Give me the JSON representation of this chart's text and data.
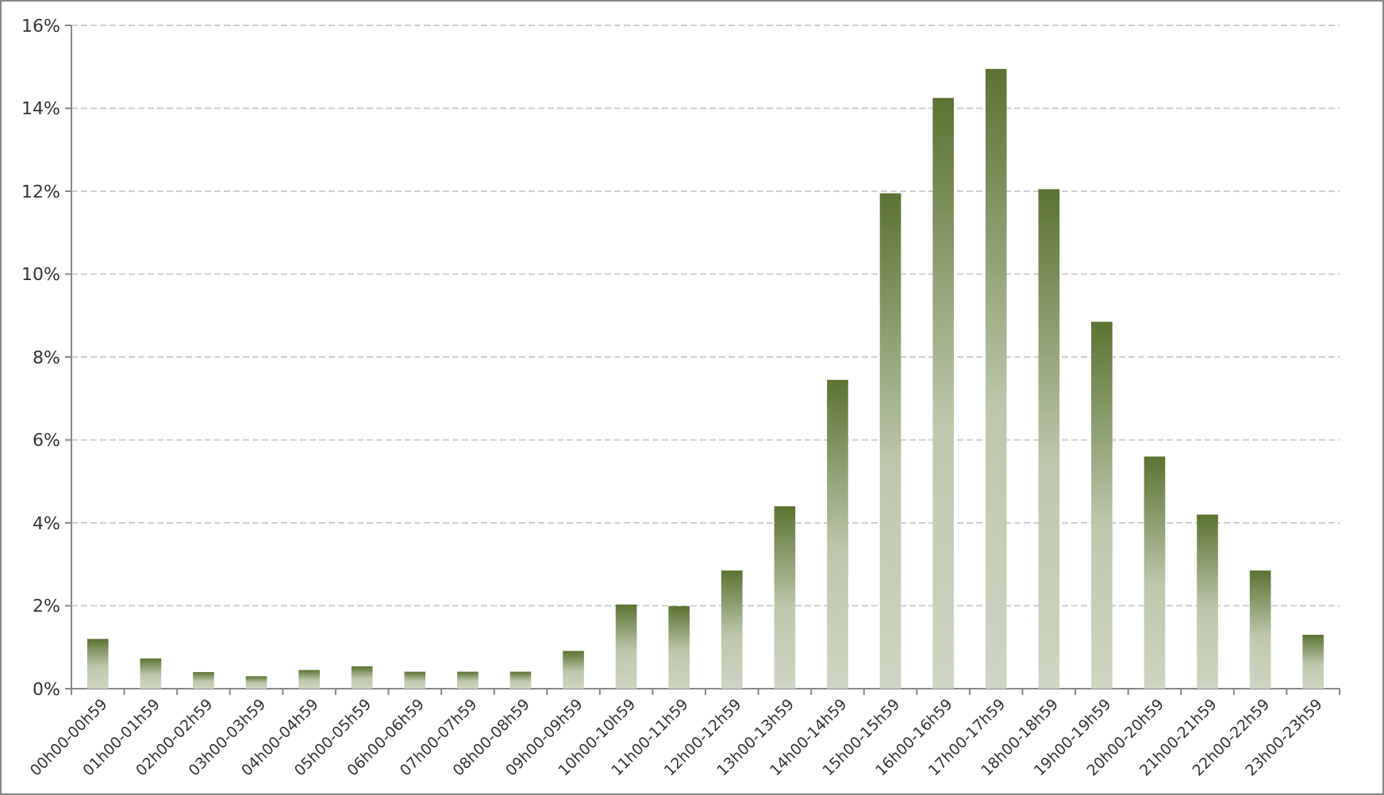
{
  "chart_data": {
    "type": "bar",
    "categories": [
      "00h00-00h59",
      "01h00-01h59",
      "02h00-02h59",
      "03h00-03h59",
      "04h00-04h59",
      "05h00-05h59",
      "06h00-06h59",
      "07h00-07h59",
      "08h00-08h59",
      "09h00-09h59",
      "10h00-10h59",
      "11h00-11h59",
      "12h00-12h59",
      "13h00-13h59",
      "14h00-14h59",
      "15h00-15h59",
      "16h00-16h59",
      "17h00-17h59",
      "18h00-18h59",
      "19h00-19h59",
      "20h00-20h59",
      "21h00-21h59",
      "22h00-22h59",
      "23h00-23h59"
    ],
    "values": [
      1.2,
      0.73,
      0.4,
      0.3,
      0.45,
      0.54,
      0.41,
      0.41,
      0.41,
      0.91,
      2.03,
      1.99,
      2.85,
      4.4,
      7.45,
      11.95,
      14.25,
      14.95,
      12.05,
      8.85,
      5.6,
      4.2,
      2.85,
      1.3
    ],
    "color": "#5b7332",
    "ylim": [
      0,
      16
    ],
    "yticks": [
      {
        "value": 0,
        "label": "0%"
      },
      {
        "value": 2,
        "label": "2%"
      },
      {
        "value": 4,
        "label": "4%"
      },
      {
        "value": 6,
        "label": "6%"
      },
      {
        "value": 8,
        "label": "8%"
      },
      {
        "value": 10,
        "label": "10%"
      },
      {
        "value": 12,
        "label": "12%"
      },
      {
        "value": 14,
        "label": "14%"
      },
      {
        "value": 16,
        "label": "16%"
      }
    ],
    "grid": "y"
  }
}
